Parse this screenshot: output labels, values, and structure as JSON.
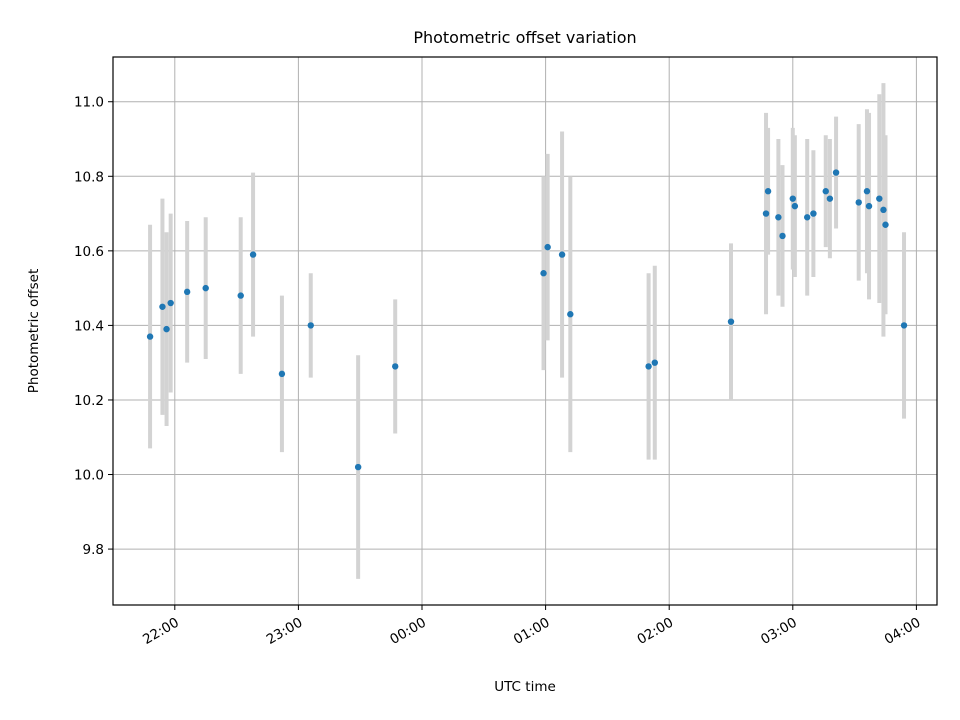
{
  "colors": {
    "point": "#1f77b4",
    "errorbar": "#d3d3d3",
    "grid": "#b0b0b0",
    "axis": "#000000"
  },
  "chart_data": {
    "type": "scatter",
    "title": "Photometric offset variation",
    "xlabel": "UTC time",
    "ylabel": "Photometric offset",
    "grid": true,
    "x_axis_type": "time",
    "x_ticks": [
      "22:00",
      "23:00",
      "00:00",
      "01:00",
      "02:00",
      "03:00",
      "04:00"
    ],
    "y_ticks": [
      "9.8",
      "10.0",
      "10.2",
      "10.4",
      "10.6",
      "10.8",
      "11.0"
    ],
    "xlim": [
      "21:30",
      "04:10"
    ],
    "ylim": [
      9.65,
      11.12
    ],
    "error_bars": "vertical",
    "points": [
      {
        "x": "21:48",
        "y": 10.37,
        "err": 0.3
      },
      {
        "x": "21:54",
        "y": 10.45,
        "err": 0.29
      },
      {
        "x": "21:56",
        "y": 10.39,
        "err": 0.26
      },
      {
        "x": "21:58",
        "y": 10.46,
        "err": 0.24
      },
      {
        "x": "22:06",
        "y": 10.49,
        "err": 0.19
      },
      {
        "x": "22:15",
        "y": 10.5,
        "err": 0.19
      },
      {
        "x": "22:32",
        "y": 10.48,
        "err": 0.21
      },
      {
        "x": "22:38",
        "y": 10.59,
        "err": 0.22
      },
      {
        "x": "22:52",
        "y": 10.27,
        "err": 0.21
      },
      {
        "x": "23:06",
        "y": 10.4,
        "err": 0.14
      },
      {
        "x": "23:29",
        "y": 10.02,
        "err": 0.3
      },
      {
        "x": "23:47",
        "y": 10.29,
        "err": 0.18
      },
      {
        "x": "00:59",
        "y": 10.54,
        "err": 0.26
      },
      {
        "x": "01:01",
        "y": 10.61,
        "err": 0.25
      },
      {
        "x": "01:08",
        "y": 10.59,
        "err": 0.33
      },
      {
        "x": "01:12",
        "y": 10.43,
        "err": 0.37
      },
      {
        "x": "01:50",
        "y": 10.29,
        "err": 0.25
      },
      {
        "x": "01:53",
        "y": 10.3,
        "err": 0.26
      },
      {
        "x": "02:30",
        "y": 10.41,
        "err": 0.21
      },
      {
        "x": "02:47",
        "y": 10.7,
        "err": 0.27
      },
      {
        "x": "02:48",
        "y": 10.76,
        "err": 0.17
      },
      {
        "x": "02:53",
        "y": 10.69,
        "err": 0.21
      },
      {
        "x": "02:55",
        "y": 10.64,
        "err": 0.19
      },
      {
        "x": "03:00",
        "y": 10.74,
        "err": 0.19
      },
      {
        "x": "03:01",
        "y": 10.72,
        "err": 0.19
      },
      {
        "x": "03:07",
        "y": 10.69,
        "err": 0.21
      },
      {
        "x": "03:10",
        "y": 10.7,
        "err": 0.17
      },
      {
        "x": "03:16",
        "y": 10.76,
        "err": 0.15
      },
      {
        "x": "03:18",
        "y": 10.74,
        "err": 0.16
      },
      {
        "x": "03:21",
        "y": 10.81,
        "err": 0.15
      },
      {
        "x": "03:32",
        "y": 10.73,
        "err": 0.21
      },
      {
        "x": "03:36",
        "y": 10.76,
        "err": 0.22
      },
      {
        "x": "03:37",
        "y": 10.72,
        "err": 0.25
      },
      {
        "x": "03:42",
        "y": 10.74,
        "err": 0.28
      },
      {
        "x": "03:44",
        "y": 10.71,
        "err": 0.34
      },
      {
        "x": "03:45",
        "y": 10.67,
        "err": 0.24
      },
      {
        "x": "03:54",
        "y": 10.4,
        "err": 0.25
      }
    ]
  }
}
